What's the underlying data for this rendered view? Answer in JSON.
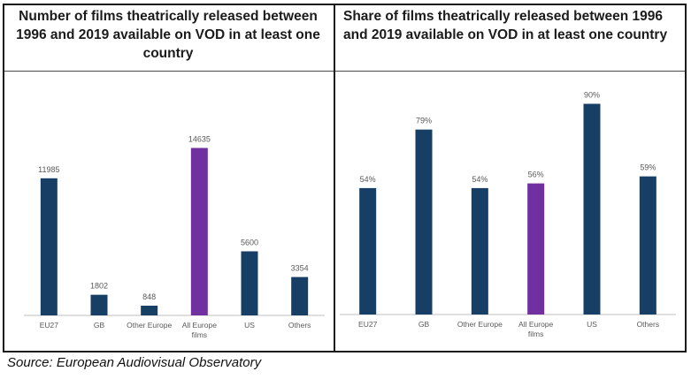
{
  "source": "Source: European Audiovisual Observatory",
  "colors": {
    "bar": "#173f66",
    "highlight": "#7030a0",
    "axis": "#bfbfbf",
    "label": "#595959"
  },
  "chart_data": [
    {
      "type": "bar",
      "title": "Number of films theatrically released between 1996 and 2019 available on VOD in at least one country",
      "categories": [
        "EU27",
        "GB",
        "Other Europe",
        "All Europe films",
        "US",
        "Others"
      ],
      "values": [
        11985,
        1802,
        848,
        14635,
        5600,
        3354
      ],
      "value_labels": [
        "11985",
        "1802",
        "848",
        "14635",
        "5600",
        "3354"
      ],
      "highlight_index": 3,
      "ylim": [
        0,
        20000
      ],
      "grid": false,
      "xlabel": "",
      "ylabel": ""
    },
    {
      "type": "bar",
      "title": "Share of films theatrically released between 1996 and 2019 available on VOD in at least one country",
      "categories": [
        "EU27",
        "GB",
        "Other Europe",
        "All Europe films",
        "US",
        "Others"
      ],
      "values": [
        54,
        79,
        54,
        56,
        90,
        59
      ],
      "value_labels": [
        "54%",
        "79%",
        "54%",
        "56%",
        "90%",
        "59%"
      ],
      "highlight_index": 3,
      "ylim": [
        0,
        100
      ],
      "grid": false,
      "xlabel": "",
      "ylabel": ""
    }
  ]
}
